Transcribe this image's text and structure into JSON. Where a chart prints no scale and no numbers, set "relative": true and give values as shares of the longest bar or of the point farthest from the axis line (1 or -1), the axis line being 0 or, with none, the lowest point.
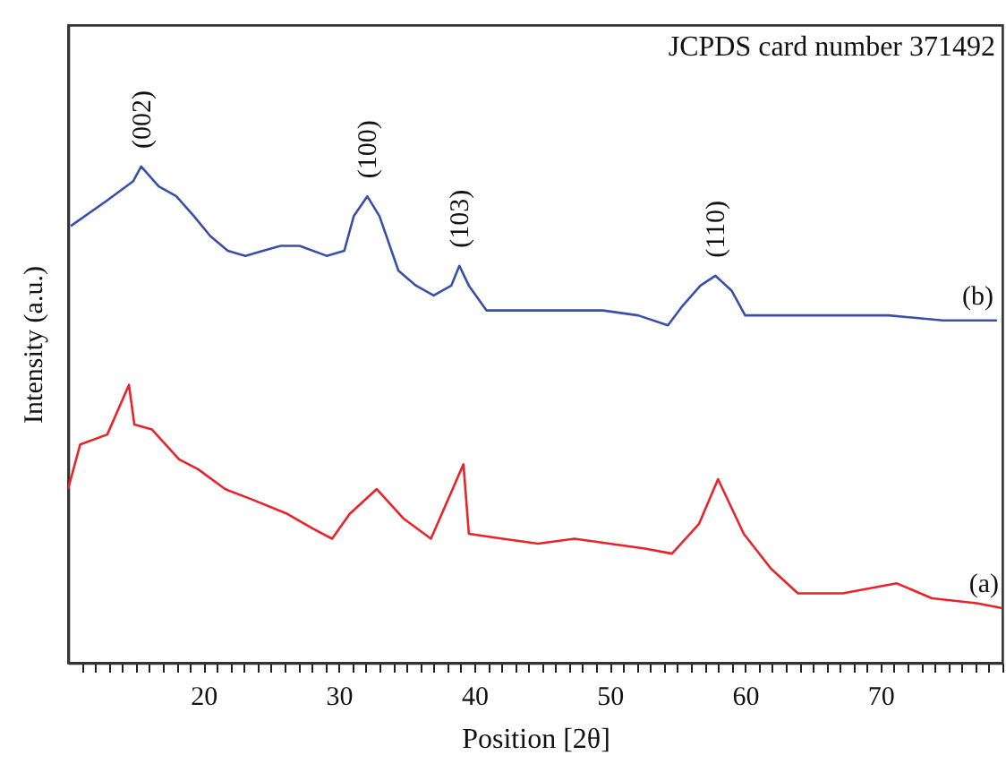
{
  "chart_data": {
    "type": "line",
    "relative": true,
    "xlabel": "Position [2θ]",
    "ylabel": "Intensity (a.u.)",
    "xlim": [
      10,
      79
    ],
    "xticks": [
      {
        "value": 11,
        "label": null
      },
      {
        "value": 12,
        "label": null
      },
      {
        "value": 13,
        "label": null
      },
      {
        "value": 14,
        "label": null
      },
      {
        "value": 15,
        "label": null
      },
      {
        "value": 16,
        "label": null
      },
      {
        "value": 17,
        "label": null
      },
      {
        "value": 18,
        "label": null
      },
      {
        "value": 19,
        "label": null
      },
      20,
      {
        "value": 21,
        "label": null
      },
      {
        "value": 22,
        "label": null
      },
      {
        "value": 23,
        "label": null
      },
      {
        "value": 24,
        "label": null
      },
      {
        "value": 25,
        "label": null
      },
      {
        "value": 26,
        "label": null
      },
      {
        "value": 27,
        "label": null
      },
      {
        "value": 28,
        "label": null
      },
      {
        "value": 29,
        "label": null
      },
      30,
      {
        "value": 31,
        "label": null
      },
      {
        "value": 32,
        "label": null
      },
      {
        "value": 33,
        "label": null
      },
      {
        "value": 34,
        "label": null
      },
      {
        "value": 35,
        "label": null
      },
      {
        "value": 36,
        "label": null
      },
      {
        "value": 37,
        "label": null
      },
      {
        "value": 38,
        "label": null
      },
      {
        "value": 39,
        "label": null
      },
      40,
      {
        "value": 41,
        "label": null
      },
      {
        "value": 42,
        "label": null
      },
      {
        "value": 43,
        "label": null
      },
      {
        "value": 44,
        "label": null
      },
      {
        "value": 45,
        "label": null
      },
      {
        "value": 46,
        "label": null
      },
      {
        "value": 47,
        "label": null
      },
      {
        "value": 48,
        "label": null
      },
      {
        "value": 49,
        "label": null
      },
      50,
      {
        "value": 51,
        "label": null
      },
      {
        "value": 52,
        "label": null
      },
      {
        "value": 53,
        "label": null
      },
      {
        "value": 54,
        "label": null
      },
      {
        "value": 55,
        "label": null
      },
      {
        "value": 56,
        "label": null
      },
      {
        "value": 57,
        "label": null
      },
      {
        "value": 58,
        "label": null
      },
      {
        "value": 59,
        "label": null
      },
      60,
      {
        "value": 61,
        "label": null
      },
      {
        "value": 62,
        "label": null
      },
      {
        "value": 63,
        "label": null
      },
      {
        "value": 64,
        "label": null
      },
      {
        "value": 65,
        "label": null
      },
      {
        "value": 66,
        "label": null
      },
      {
        "value": 67,
        "label": null
      },
      {
        "value": 68,
        "label": null
      },
      {
        "value": 69,
        "label": null
      },
      70,
      {
        "value": 71,
        "label": null
      },
      {
        "value": 72,
        "label": null
      },
      {
        "value": 73,
        "label": null
      },
      {
        "value": 74,
        "label": null
      },
      {
        "value": 75,
        "label": null
      },
      {
        "value": 76,
        "label": null
      },
      {
        "value": 77,
        "label": null
      },
      {
        "value": 78,
        "label": null
      },
      {
        "value": 79,
        "label": null
      }
    ],
    "legend": false,
    "grid": false,
    "series": [
      {
        "name": "(b)",
        "color": "#3a4fa8",
        "x": [
          10.2,
          12.8,
          14.8,
          15.4,
          16.7,
          18,
          19.3,
          20.5,
          21.8,
          23.1,
          24.4,
          25.7,
          27.1,
          29.1,
          30.4,
          31.1,
          32.1,
          33,
          34.4,
          35.7,
          37,
          38.3,
          38.9,
          39.6,
          40.9,
          42.9,
          44.2,
          46.8,
          49.5,
          52.1,
          54.3,
          55.4,
          56.7,
          57.8,
          59,
          60,
          62.7,
          66.7,
          70.6,
          74.6,
          78.6
        ],
        "values": [
          0.88,
          0.93,
          0.97,
          1.0,
          0.96,
          0.94,
          0.9,
          0.86,
          0.83,
          0.82,
          0.83,
          0.84,
          0.84,
          0.82,
          0.83,
          0.9,
          0.94,
          0.9,
          0.79,
          0.76,
          0.74,
          0.76,
          0.8,
          0.76,
          0.71,
          0.71,
          0.71,
          0.71,
          0.71,
          0.7,
          0.68,
          0.72,
          0.76,
          0.78,
          0.75,
          0.7,
          0.7,
          0.7,
          0.7,
          0.69,
          0.69
        ]
      },
      {
        "name": "(a)",
        "color": "#e8242a",
        "x": [
          10,
          10.9,
          12.9,
          14.5,
          14.9,
          16.2,
          18.2,
          19.6,
          21.6,
          23.5,
          26.2,
          28.1,
          29.5,
          30.8,
          32.8,
          34.8,
          36.8,
          39.2,
          39.6,
          42.1,
          44.7,
          47.4,
          50,
          52.6,
          54.6,
          56.6,
          58,
          59.9,
          61.9,
          63.9,
          67.2,
          71.2,
          73.8,
          77.1,
          79
        ],
        "values": [
          0.35,
          0.44,
          0.46,
          0.56,
          0.48,
          0.47,
          0.41,
          0.39,
          0.35,
          0.33,
          0.3,
          0.27,
          0.25,
          0.3,
          0.35,
          0.29,
          0.25,
          0.4,
          0.26,
          0.25,
          0.24,
          0.25,
          0.24,
          0.23,
          0.22,
          0.28,
          0.37,
          0.26,
          0.19,
          0.14,
          0.14,
          0.16,
          0.13,
          0.12,
          0.11
        ]
      }
    ],
    "annotations": [
      "JCPDS card number 371492",
      {
        "text": "(002)",
        "x": 15.4,
        "y": 1.0
      },
      {
        "text": "(100)",
        "x": 32.1,
        "y": 0.94
      },
      {
        "text": "(103)",
        "x": 38.9,
        "y": 0.8
      },
      {
        "text": "(110)",
        "x": 57.8,
        "y": 0.78
      }
    ]
  }
}
